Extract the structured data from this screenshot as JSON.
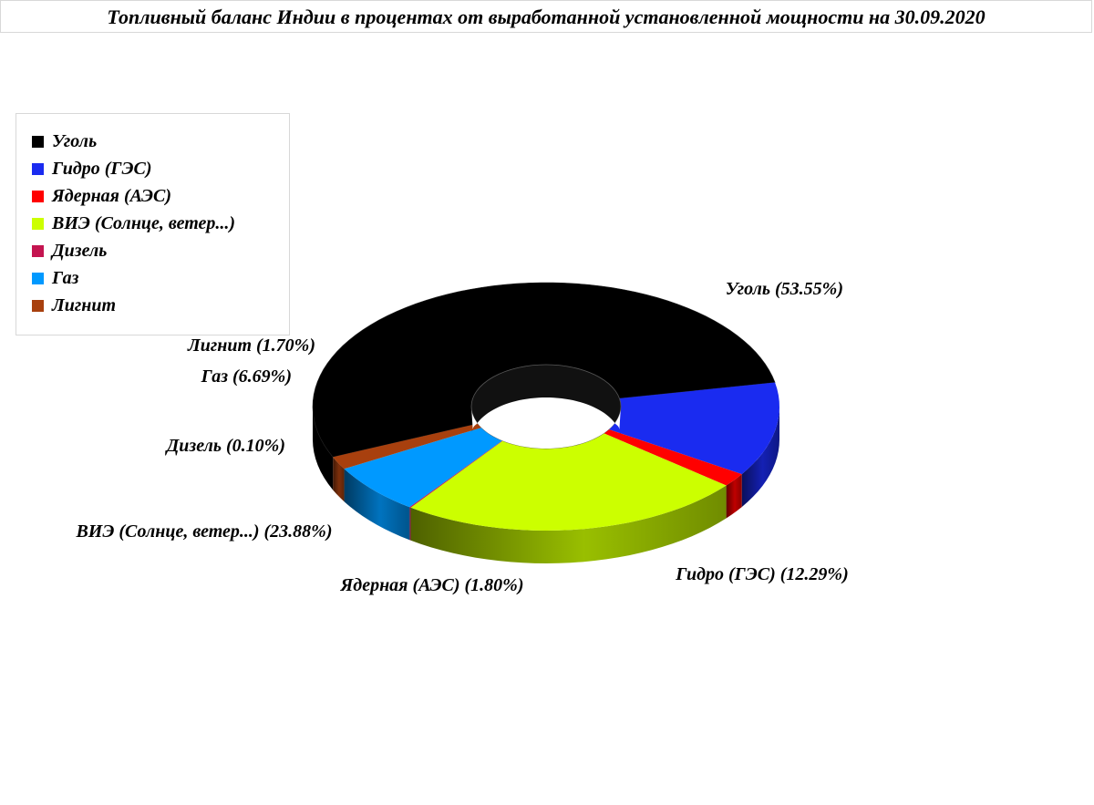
{
  "chart_data": {
    "type": "pie",
    "variant": "3d-donut",
    "title": "Топливный баланс Индии в процентах от выработанной установленной мощности на 30.09.2020",
    "legend_position": "top-left",
    "slices": [
      {
        "name": "Уголь",
        "value": 53.55,
        "label": "Уголь (53.55%)",
        "color": "#000000"
      },
      {
        "name": "Гидро (ГЭС)",
        "value": 12.29,
        "label": "Гидро (ГЭС) (12.29%)",
        "color": "#1a2bf0"
      },
      {
        "name": "Ядерная (АЭС)",
        "value": 1.8,
        "label": "Ядерная (АЭС) (1.80%)",
        "color": "#ff0000"
      },
      {
        "name": "ВИЭ (Солнце, ветер...)",
        "value": 23.88,
        "label": "ВИЭ (Солнце, ветер...) (23.88%)",
        "color": "#ccff00"
      },
      {
        "name": "Дизель",
        "value": 0.1,
        "label": "Дизель (0.10%)",
        "color": "#c41450"
      },
      {
        "name": "Газ",
        "value": 6.69,
        "label": "Газ (6.69%)",
        "color": "#0099ff"
      },
      {
        "name": "Лигнит",
        "value": 1.7,
        "label": "Лигнит (1.70%)",
        "color": "#a8400e"
      }
    ]
  }
}
